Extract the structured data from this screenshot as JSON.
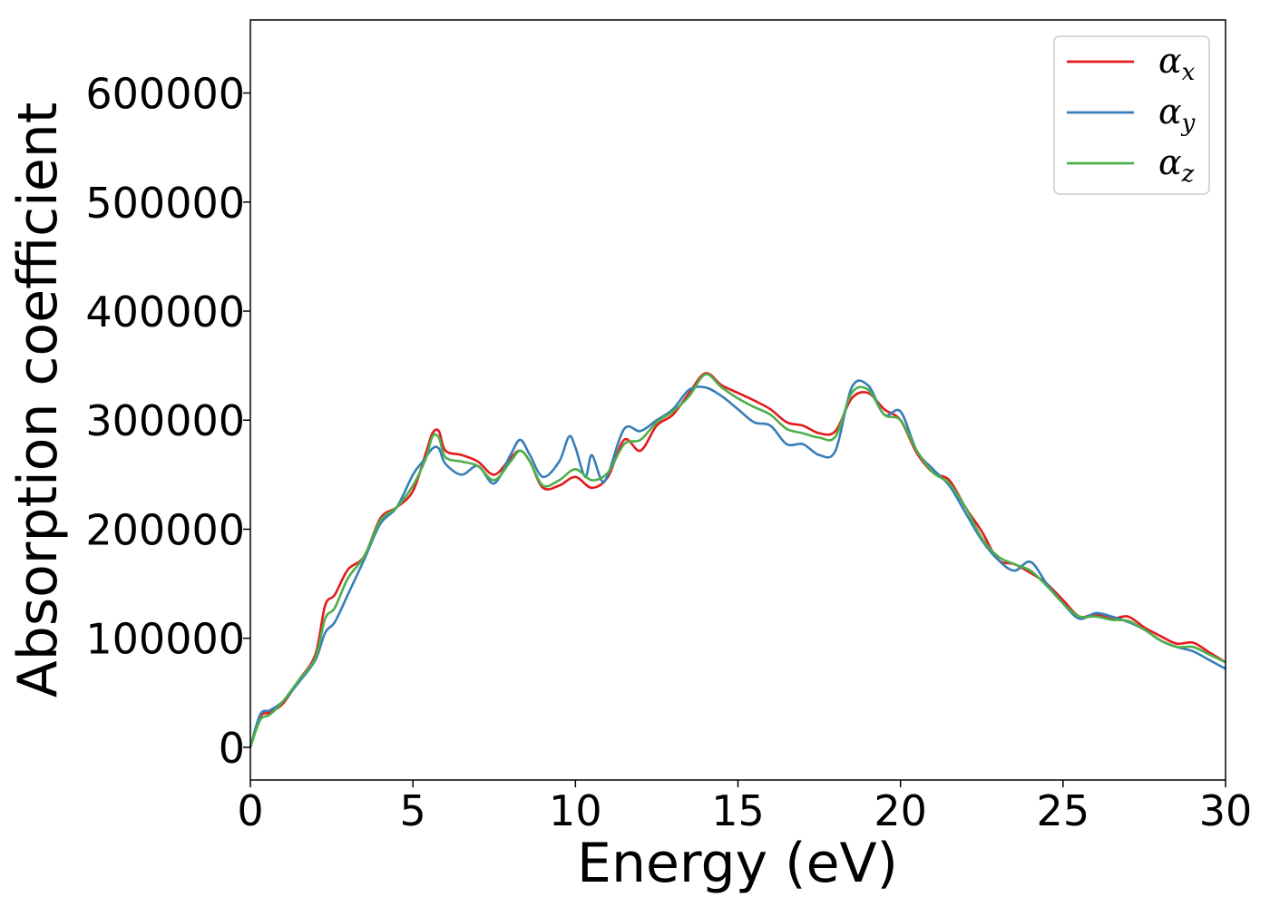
{
  "chart_data": {
    "type": "line",
    "title": "",
    "xlabel": "Energy (eV)",
    "ylabel": "Absorption coefficient",
    "xlim": [
      0,
      30
    ],
    "ylim": [
      -30000,
      667000
    ],
    "x_ticks": [
      0,
      5,
      10,
      15,
      20,
      25,
      30
    ],
    "y_ticks": [
      0,
      100000,
      200000,
      300000,
      400000,
      500000,
      600000
    ],
    "x_tick_labels": [
      "0",
      "5",
      "10",
      "15",
      "20",
      "25",
      "30"
    ],
    "y_tick_labels": [
      "0",
      "100000",
      "200000",
      "300000",
      "400000",
      "500000",
      "600000"
    ],
    "grid": false,
    "legend_position": "top-right",
    "series": [
      {
        "name": "α",
        "subscript": "x",
        "color": "#e41a1c",
        "points": [
          [
            0,
            0
          ],
          [
            0.3,
            28000
          ],
          [
            0.6,
            32000
          ],
          [
            1,
            40000
          ],
          [
            1.5,
            62000
          ],
          [
            2,
            85000
          ],
          [
            2.3,
            130000
          ],
          [
            2.6,
            140000
          ],
          [
            3,
            163000
          ],
          [
            3.5,
            175000
          ],
          [
            4,
            210000
          ],
          [
            4.5,
            220000
          ],
          [
            5,
            235000
          ],
          [
            5.4,
            270000
          ],
          [
            5.6,
            288000
          ],
          [
            5.8,
            290000
          ],
          [
            6,
            272000
          ],
          [
            6.5,
            268000
          ],
          [
            7,
            262000
          ],
          [
            7.5,
            250000
          ],
          [
            8,
            265000
          ],
          [
            8.3,
            272000
          ],
          [
            8.6,
            262000
          ],
          [
            9,
            238000
          ],
          [
            9.5,
            240000
          ],
          [
            10,
            248000
          ],
          [
            10.5,
            238000
          ],
          [
            11,
            248000
          ],
          [
            11.5,
            282000
          ],
          [
            12,
            272000
          ],
          [
            12.5,
            295000
          ],
          [
            13,
            305000
          ],
          [
            13.5,
            325000
          ],
          [
            14,
            343000
          ],
          [
            14.5,
            332000
          ],
          [
            15,
            325000
          ],
          [
            15.5,
            318000
          ],
          [
            16,
            310000
          ],
          [
            16.5,
            298000
          ],
          [
            17,
            295000
          ],
          [
            17.5,
            288000
          ],
          [
            18,
            290000
          ],
          [
            18.5,
            320000
          ],
          [
            19,
            325000
          ],
          [
            19.5,
            310000
          ],
          [
            20,
            300000
          ],
          [
            20.5,
            270000
          ],
          [
            21,
            252000
          ],
          [
            21.5,
            245000
          ],
          [
            22,
            220000
          ],
          [
            22.5,
            198000
          ],
          [
            23,
            172000
          ],
          [
            23.5,
            168000
          ],
          [
            24,
            160000
          ],
          [
            24.5,
            150000
          ],
          [
            25,
            135000
          ],
          [
            25.5,
            120000
          ],
          [
            26,
            122000
          ],
          [
            26.5,
            118000
          ],
          [
            27,
            120000
          ],
          [
            27.5,
            110000
          ],
          [
            28,
            102000
          ],
          [
            28.5,
            95000
          ],
          [
            29,
            96000
          ],
          [
            29.5,
            87000
          ],
          [
            30,
            78000
          ]
        ]
      },
      {
        "name": "α",
        "subscript": "y",
        "color": "#377eb8",
        "points": [
          [
            0,
            0
          ],
          [
            0.3,
            30000
          ],
          [
            0.6,
            34000
          ],
          [
            1,
            42000
          ],
          [
            1.5,
            60000
          ],
          [
            2,
            80000
          ],
          [
            2.3,
            105000
          ],
          [
            2.6,
            115000
          ],
          [
            3,
            140000
          ],
          [
            3.5,
            172000
          ],
          [
            4,
            205000
          ],
          [
            4.5,
            220000
          ],
          [
            5,
            250000
          ],
          [
            5.3,
            262000
          ],
          [
            5.6,
            274000
          ],
          [
            5.8,
            274000
          ],
          [
            6,
            260000
          ],
          [
            6.5,
            250000
          ],
          [
            7,
            258000
          ],
          [
            7.5,
            242000
          ],
          [
            8,
            268000
          ],
          [
            8.3,
            282000
          ],
          [
            8.6,
            268000
          ],
          [
            9,
            248000
          ],
          [
            9.5,
            262000
          ],
          [
            9.8,
            285000
          ],
          [
            10,
            275000
          ],
          [
            10.3,
            248000
          ],
          [
            10.5,
            268000
          ],
          [
            10.8,
            245000
          ],
          [
            11,
            250000
          ],
          [
            11.5,
            292000
          ],
          [
            12,
            290000
          ],
          [
            12.5,
            300000
          ],
          [
            13,
            310000
          ],
          [
            13.5,
            328000
          ],
          [
            14,
            330000
          ],
          [
            14.5,
            322000
          ],
          [
            15,
            310000
          ],
          [
            15.5,
            298000
          ],
          [
            16,
            295000
          ],
          [
            16.5,
            278000
          ],
          [
            17,
            278000
          ],
          [
            17.5,
            268000
          ],
          [
            18,
            272000
          ],
          [
            18.5,
            330000
          ],
          [
            19,
            332000
          ],
          [
            19.5,
            305000
          ],
          [
            20,
            308000
          ],
          [
            20.5,
            272000
          ],
          [
            21,
            255000
          ],
          [
            21.5,
            240000
          ],
          [
            22,
            215000
          ],
          [
            22.5,
            190000
          ],
          [
            23,
            172000
          ],
          [
            23.5,
            162000
          ],
          [
            24,
            170000
          ],
          [
            24.5,
            150000
          ],
          [
            25,
            132000
          ],
          [
            25.5,
            118000
          ],
          [
            26,
            123000
          ],
          [
            26.5,
            120000
          ],
          [
            27,
            115000
          ],
          [
            27.5,
            108000
          ],
          [
            28,
            98000
          ],
          [
            28.5,
            92000
          ],
          [
            29,
            88000
          ],
          [
            29.5,
            80000
          ],
          [
            30,
            72000
          ]
        ]
      },
      {
        "name": "α",
        "subscript": "z",
        "color": "#4daf4a",
        "points": [
          [
            0,
            0
          ],
          [
            0.3,
            25000
          ],
          [
            0.6,
            30000
          ],
          [
            1,
            42000
          ],
          [
            1.5,
            62000
          ],
          [
            2,
            82000
          ],
          [
            2.3,
            118000
          ],
          [
            2.6,
            128000
          ],
          [
            3,
            155000
          ],
          [
            3.5,
            175000
          ],
          [
            4,
            208000
          ],
          [
            4.5,
            220000
          ],
          [
            5,
            240000
          ],
          [
            5.4,
            265000
          ],
          [
            5.6,
            285000
          ],
          [
            5.8,
            284000
          ],
          [
            6,
            266000
          ],
          [
            6.5,
            262000
          ],
          [
            7,
            258000
          ],
          [
            7.5,
            245000
          ],
          [
            8,
            262000
          ],
          [
            8.3,
            272000
          ],
          [
            8.6,
            262000
          ],
          [
            9,
            240000
          ],
          [
            9.5,
            245000
          ],
          [
            10,
            255000
          ],
          [
            10.5,
            245000
          ],
          [
            11,
            252000
          ],
          [
            11.5,
            278000
          ],
          [
            12,
            282000
          ],
          [
            12.5,
            298000
          ],
          [
            13,
            308000
          ],
          [
            13.5,
            322000
          ],
          [
            14,
            342000
          ],
          [
            14.5,
            330000
          ],
          [
            15,
            320000
          ],
          [
            15.5,
            312000
          ],
          [
            16,
            305000
          ],
          [
            16.5,
            292000
          ],
          [
            17,
            288000
          ],
          [
            17.5,
            284000
          ],
          [
            18,
            285000
          ],
          [
            18.5,
            325000
          ],
          [
            19,
            328000
          ],
          [
            19.5,
            305000
          ],
          [
            20,
            300000
          ],
          [
            20.5,
            272000
          ],
          [
            21,
            252000
          ],
          [
            21.5,
            242000
          ],
          [
            22,
            220000
          ],
          [
            22.5,
            192000
          ],
          [
            23,
            175000
          ],
          [
            23.5,
            168000
          ],
          [
            24,
            162000
          ],
          [
            24.5,
            148000
          ],
          [
            25,
            132000
          ],
          [
            25.5,
            120000
          ],
          [
            26,
            120000
          ],
          [
            26.5,
            117000
          ],
          [
            27,
            116000
          ],
          [
            27.5,
            108000
          ],
          [
            28,
            98000
          ],
          [
            28.5,
            92000
          ],
          [
            29,
            92000
          ],
          [
            29.5,
            85000
          ],
          [
            30,
            78000
          ]
        ]
      }
    ]
  }
}
